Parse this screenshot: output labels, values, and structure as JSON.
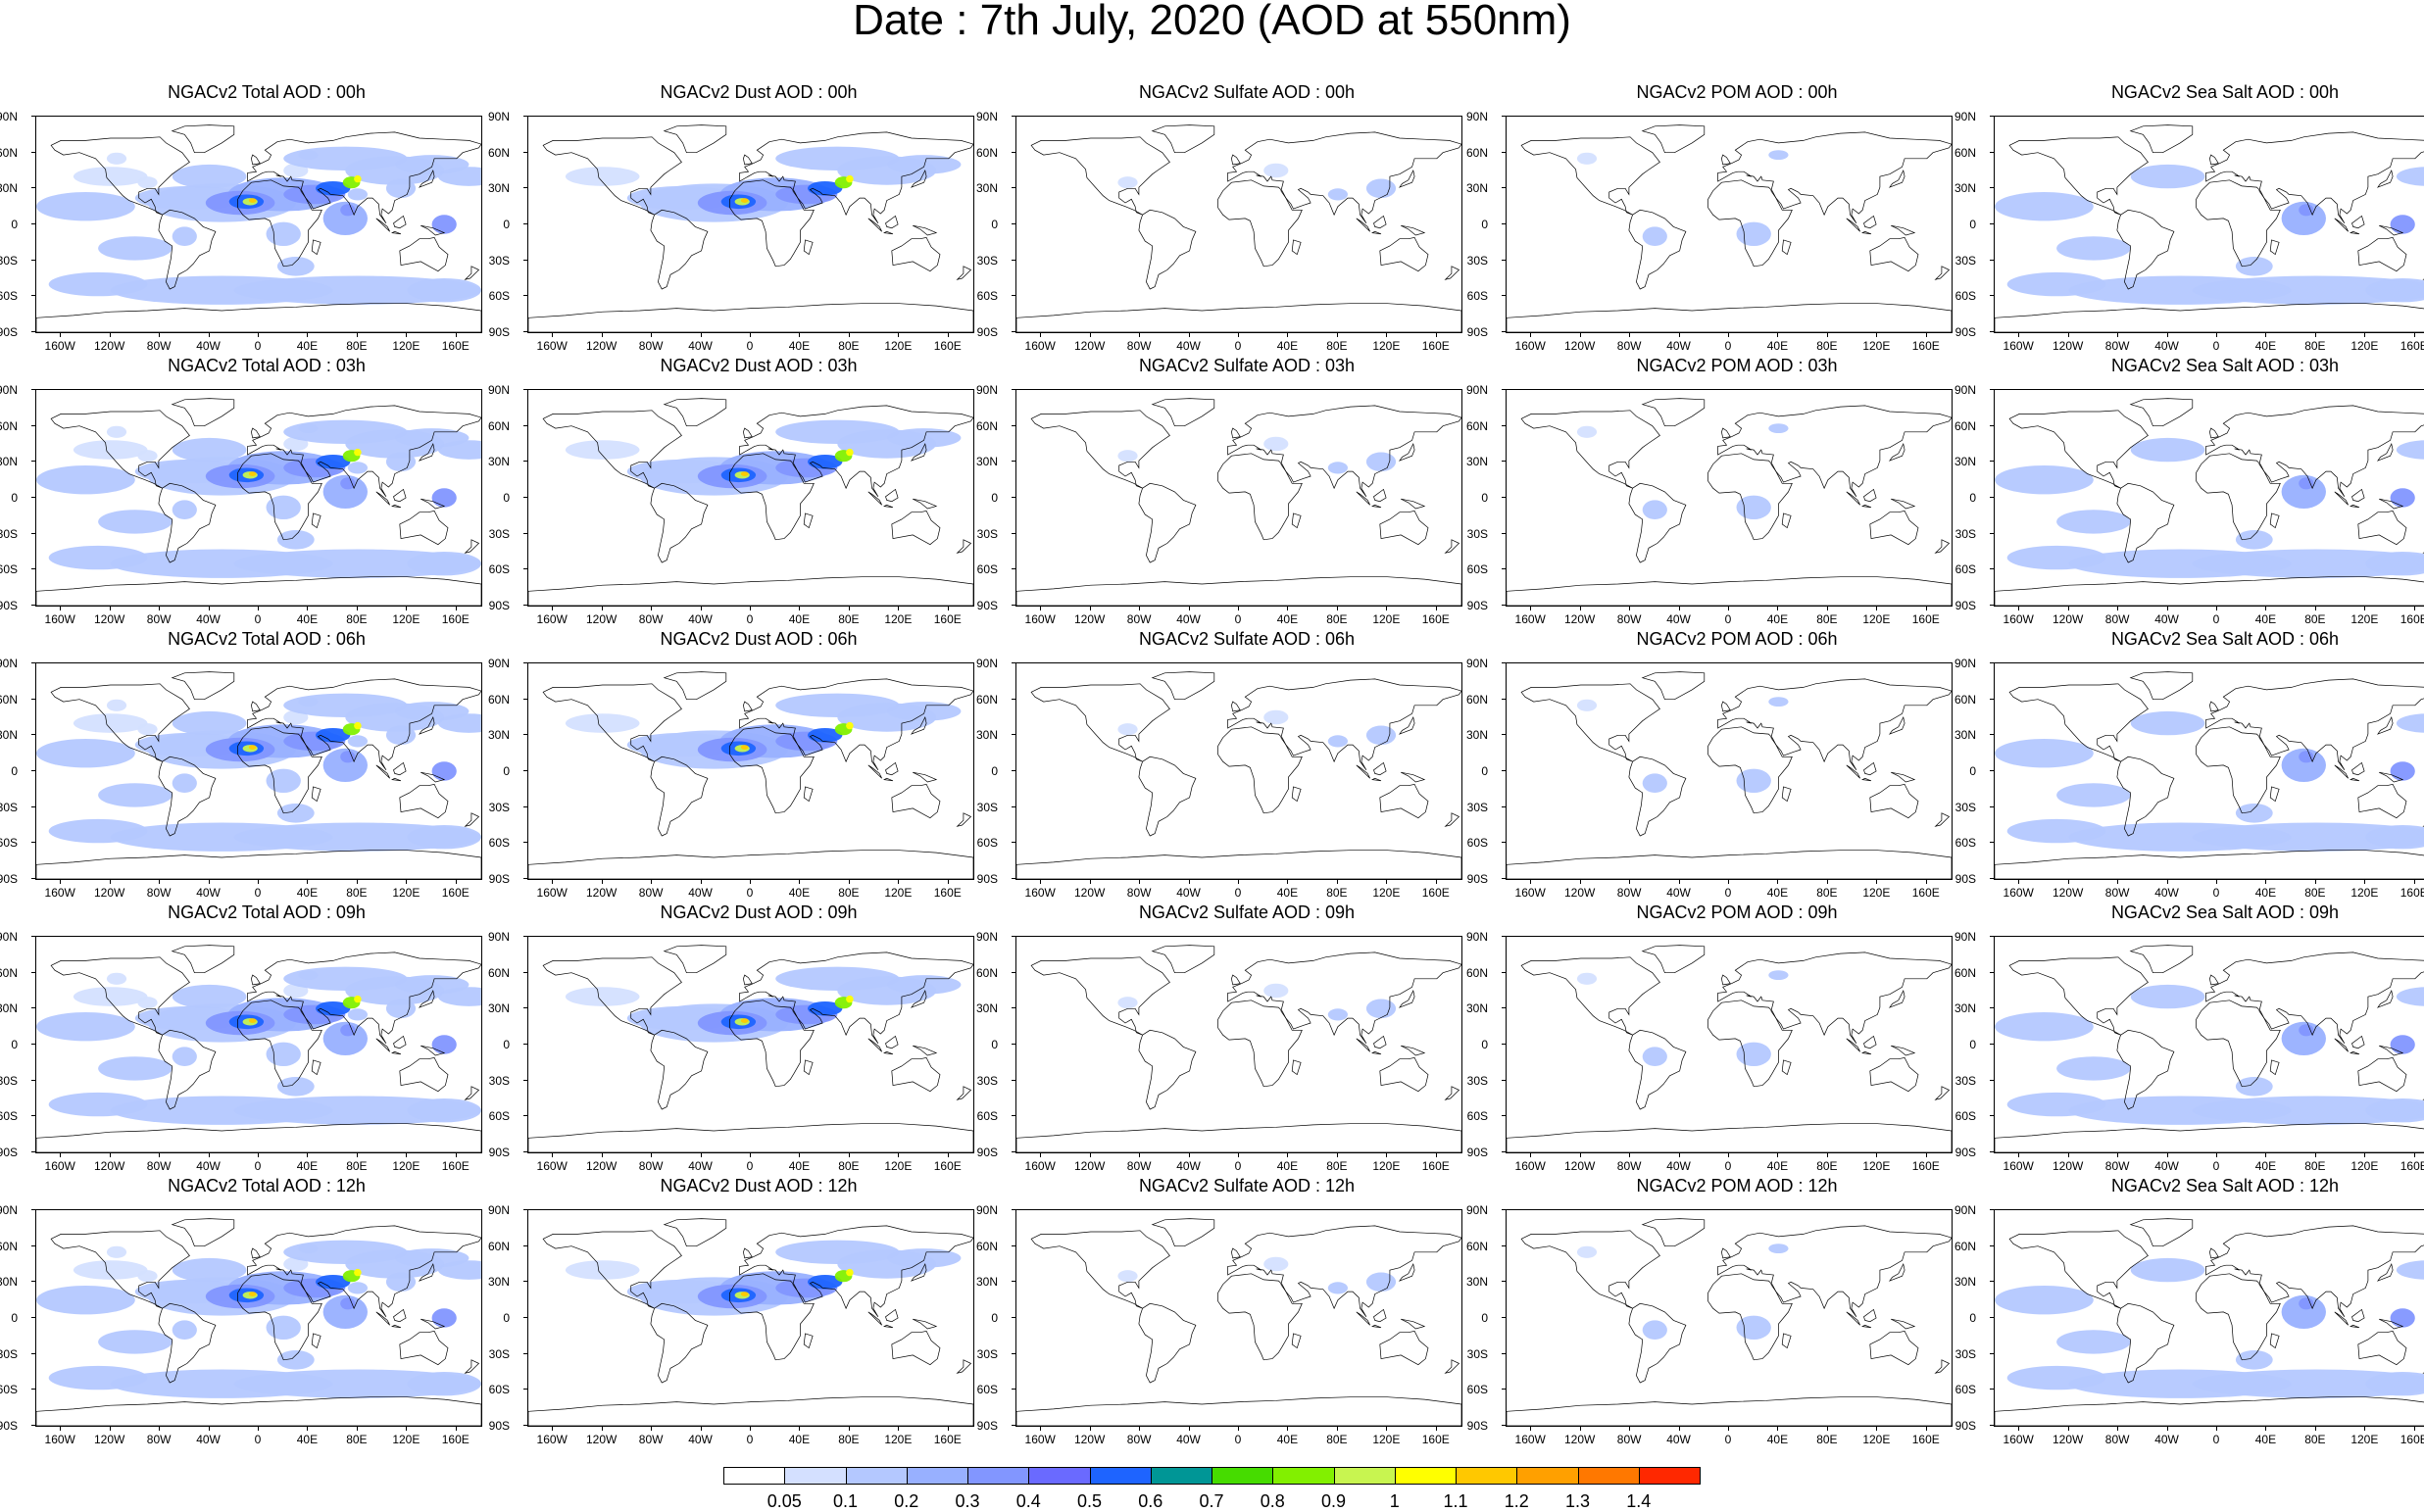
{
  "title": "Date : 7th July, 2020 (AOD at 550nm)",
  "lat_labels": [
    "90N",
    "60N",
    "30N",
    "0",
    "30S",
    "60S",
    "90S"
  ],
  "lon_labels": [
    "160W",
    "120W",
    "80W",
    "40W",
    "0",
    "40E",
    "80E",
    "120E",
    "160E"
  ],
  "panels": [
    {
      "title": "NGACv2 Total AOD : 00h",
      "species": "total",
      "hour": "00h"
    },
    {
      "title": "NGACv2 Dust AOD : 00h",
      "species": "dust",
      "hour": "00h"
    },
    {
      "title": "NGACv2 Sulfate AOD : 00h",
      "species": "sulfate",
      "hour": "00h"
    },
    {
      "title": "NGACv2 POM AOD : 00h",
      "species": "pom",
      "hour": "00h"
    },
    {
      "title": "NGACv2 Sea Salt AOD : 00h",
      "species": "seasalt",
      "hour": "00h"
    },
    {
      "title": "NGACv2 Total AOD : 03h",
      "species": "total",
      "hour": "03h"
    },
    {
      "title": "NGACv2 Dust AOD : 03h",
      "species": "dust",
      "hour": "03h"
    },
    {
      "title": "NGACv2 Sulfate AOD : 03h",
      "species": "sulfate",
      "hour": "03h"
    },
    {
      "title": "NGACv2 POM AOD : 03h",
      "species": "pom",
      "hour": "03h"
    },
    {
      "title": "NGACv2 Sea Salt AOD : 03h",
      "species": "seasalt",
      "hour": "03h"
    },
    {
      "title": "NGACv2 Total AOD : 06h",
      "species": "total",
      "hour": "06h"
    },
    {
      "title": "NGACv2 Dust AOD : 06h",
      "species": "dust",
      "hour": "06h"
    },
    {
      "title": "NGACv2 Sulfate AOD : 06h",
      "species": "sulfate",
      "hour": "06h"
    },
    {
      "title": "NGACv2 POM AOD : 06h",
      "species": "pom",
      "hour": "06h"
    },
    {
      "title": "NGACv2 Sea Salt AOD : 06h",
      "species": "seasalt",
      "hour": "06h"
    },
    {
      "title": "NGACv2 Total AOD : 09h",
      "species": "total",
      "hour": "09h"
    },
    {
      "title": "NGACv2 Dust AOD : 09h",
      "species": "dust",
      "hour": "09h"
    },
    {
      "title": "NGACv2 Sulfate AOD : 09h",
      "species": "sulfate",
      "hour": "09h"
    },
    {
      "title": "NGACv2 POM AOD : 09h",
      "species": "pom",
      "hour": "09h"
    },
    {
      "title": "NGACv2 Sea Salt  AOD : 09h",
      "species": "seasalt",
      "hour": "09h"
    },
    {
      "title": "NGACv2 Total AOD : 12h",
      "species": "total",
      "hour": "12h"
    },
    {
      "title": "NGACv2 Dust AOD : 12h",
      "species": "dust",
      "hour": "12h"
    },
    {
      "title": "NGACv2 Sulfate AOD : 12h",
      "species": "sulfate",
      "hour": "12h"
    },
    {
      "title": "NGACv2 POM  AOD : 12h",
      "species": "pom",
      "hour": "12h"
    },
    {
      "title": "NGACv2 Sea Salt AOD : 12h",
      "species": "seasalt",
      "hour": "12h"
    }
  ],
  "colorbar": {
    "labels": [
      "0.05",
      "0.1",
      "0.2",
      "0.3",
      "0.4",
      "0.5",
      "0.6",
      "0.7",
      "0.8",
      "0.9",
      "1",
      "1.1",
      "1.2",
      "1.3",
      "1.4"
    ],
    "colors": [
      "#ffffff",
      "#d4e0ff",
      "#b4c8ff",
      "#98b0ff",
      "#8296ff",
      "#6a6aff",
      "#1e64ff",
      "#009696",
      "#46dc00",
      "#82f000",
      "#c8f550",
      "#ffff00",
      "#ffc800",
      "#ffa000",
      "#ff7800",
      "#ff2800"
    ]
  }
}
